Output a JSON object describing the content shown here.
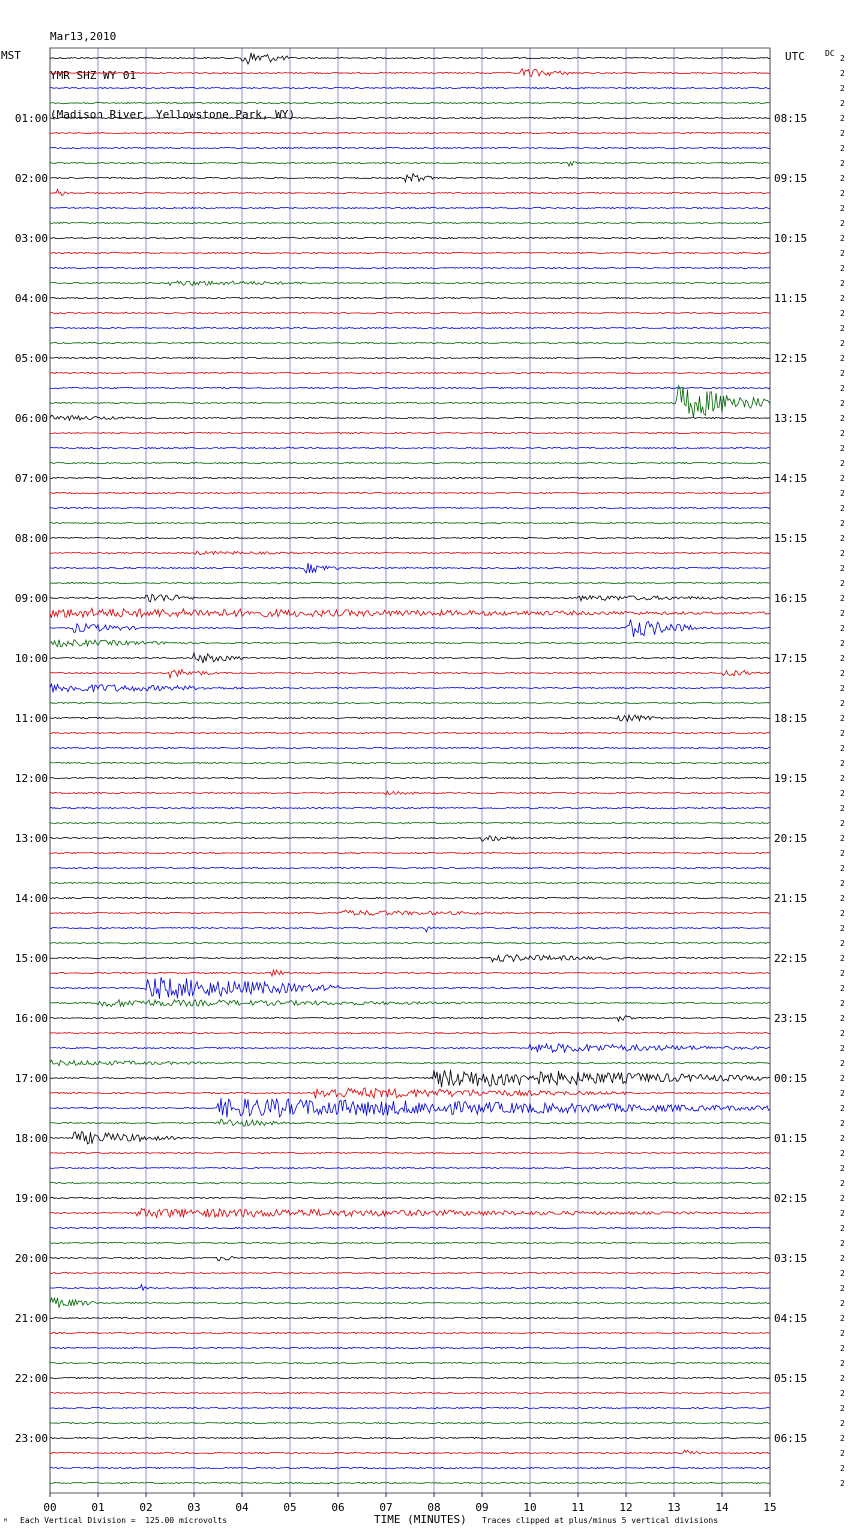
{
  "header": {
    "date": "Mar13,2010",
    "station": "YMR SHZ WY 01",
    "location": "(Madison River, Yellowstone Park, WY)"
  },
  "left_zone": "MST",
  "right_zone": "UTC",
  "dc_label": "DC",
  "footer": {
    "scale": "Each Vertical Division =  125.00 microvolts",
    "xlabel": "TIME (MINUTES)",
    "clip_note": "Traces clipped at plus/minus 5 vertical divisions"
  },
  "colors": {
    "trace_cycle": [
      "#000000",
      "#dd0000",
      "#0000dd",
      "#006600"
    ],
    "grid": "#7777cc"
  },
  "chart_data": {
    "type": "line",
    "title": "YMR SHZ WY 01",
    "xlabel": "TIME (MINUTES)",
    "xlim": [
      0,
      15
    ],
    "x_ticks": [
      "00",
      "01",
      "02",
      "03",
      "04",
      "05",
      "06",
      "07",
      "08",
      "09",
      "10",
      "11",
      "12",
      "13",
      "14",
      "15"
    ],
    "trace_count": 96,
    "minutes_per_trace": 15,
    "left_hour_labels": [
      "01:00",
      "02:00",
      "03:00",
      "04:00",
      "05:00",
      "06:00",
      "07:00",
      "08:00",
      "09:00",
      "10:00",
      "11:00",
      "12:00",
      "13:00",
      "14:00",
      "15:00",
      "16:00",
      "17:00",
      "18:00",
      "19:00",
      "20:00",
      "21:00",
      "22:00",
      "23:00"
    ],
    "right_hour_labels": [
      "08:15",
      "09:15",
      "10:15",
      "11:15",
      "12:15",
      "13:15",
      "14:15",
      "15:15",
      "16:15",
      "17:15",
      "18:15",
      "19:15",
      "20:15",
      "21:15",
      "22:15",
      "23:15",
      "00:15",
      "01:15",
      "02:15",
      "03:15",
      "04:15",
      "05:15",
      "06:15"
    ],
    "right_values": [
      2,
      2,
      2,
      2,
      2,
      2,
      2,
      2,
      2,
      2,
      2,
      2,
      2,
      2,
      2,
      2,
      2,
      2,
      2,
      2,
      2,
      2,
      2,
      2,
      2,
      2,
      2,
      2,
      2,
      2,
      2,
      2,
      2,
      2,
      2,
      2,
      2,
      2,
      2,
      2,
      2,
      2,
      2,
      2,
      2,
      2,
      2,
      2,
      2,
      2,
      2,
      2,
      2,
      2,
      2,
      2,
      2,
      2,
      2,
      2,
      2,
      2,
      2,
      2,
      2,
      2,
      2,
      2,
      2,
      2,
      2,
      2,
      2,
      2,
      2,
      2,
      2,
      2,
      2,
      2,
      2,
      2,
      2,
      2,
      2,
      2,
      2,
      2,
      2,
      2,
      2,
      2,
      2,
      2,
      2,
      2
    ],
    "events": [
      {
        "trace": 0,
        "start_min": 4.0,
        "end_min": 5.0,
        "amplitude": 8
      },
      {
        "trace": 1,
        "start_min": 9.8,
        "end_min": 11.0,
        "amplitude": 5
      },
      {
        "trace": 7,
        "start_min": 10.8,
        "end_min": 11.0,
        "amplitude": 4
      },
      {
        "trace": 8,
        "start_min": 7.4,
        "end_min": 8.0,
        "amplitude": 6
      },
      {
        "trace": 9,
        "start_min": 0.1,
        "end_min": 0.4,
        "amplitude": 5
      },
      {
        "trace": 15,
        "start_min": 2.5,
        "end_min": 6.0,
        "amplitude": 3
      },
      {
        "trace": 23,
        "start_min": 13.0,
        "end_min": 15.0,
        "amplitude": 18
      },
      {
        "trace": 24,
        "start_min": 0.0,
        "end_min": 2.0,
        "amplitude": 3
      },
      {
        "trace": 33,
        "start_min": 3.0,
        "end_min": 6.0,
        "amplitude": 2
      },
      {
        "trace": 34,
        "start_min": 5.3,
        "end_min": 6.0,
        "amplitude": 6
      },
      {
        "trace": 36,
        "start_min": 2.0,
        "end_min": 3.0,
        "amplitude": 6
      },
      {
        "trace": 36,
        "start_min": 11.0,
        "end_min": 15.0,
        "amplitude": 3
      },
      {
        "trace": 37,
        "start_min": 0.0,
        "end_min": 15.0,
        "amplitude": 5
      },
      {
        "trace": 38,
        "start_min": 0.5,
        "end_min": 2.0,
        "amplitude": 5
      },
      {
        "trace": 38,
        "start_min": 12.0,
        "end_min": 13.5,
        "amplitude": 10
      },
      {
        "trace": 39,
        "start_min": 0.0,
        "end_min": 3.0,
        "amplitude": 4
      },
      {
        "trace": 40,
        "start_min": 3.0,
        "end_min": 4.0,
        "amplitude": 6
      },
      {
        "trace": 41,
        "start_min": 2.5,
        "end_min": 3.5,
        "amplitude": 5
      },
      {
        "trace": 41,
        "start_min": 14.0,
        "end_min": 15.0,
        "amplitude": 4
      },
      {
        "trace": 42,
        "start_min": 0.0,
        "end_min": 4.0,
        "amplitude": 5
      },
      {
        "trace": 44,
        "start_min": 11.8,
        "end_min": 12.8,
        "amplitude": 5
      },
      {
        "trace": 49,
        "start_min": 7.0,
        "end_min": 8.0,
        "amplitude": 2
      },
      {
        "trace": 52,
        "start_min": 9.0,
        "end_min": 9.8,
        "amplitude": 4
      },
      {
        "trace": 57,
        "start_min": 6.0,
        "end_min": 10.0,
        "amplitude": 3
      },
      {
        "trace": 58,
        "start_min": 7.8,
        "end_min": 8.0,
        "amplitude": 5
      },
      {
        "trace": 60,
        "start_min": 9.2,
        "end_min": 12.0,
        "amplitude": 4
      },
      {
        "trace": 61,
        "start_min": 4.6,
        "end_min": 5.0,
        "amplitude": 4
      },
      {
        "trace": 62,
        "start_min": 2.0,
        "end_min": 6.0,
        "amplitude": 12
      },
      {
        "trace": 63,
        "start_min": 1.0,
        "end_min": 9.0,
        "amplitude": 4
      },
      {
        "trace": 64,
        "start_min": 11.8,
        "end_min": 12.2,
        "amplitude": 4
      },
      {
        "trace": 66,
        "start_min": 10.0,
        "end_min": 15.0,
        "amplitude": 5
      },
      {
        "trace": 67,
        "start_min": 0.0,
        "end_min": 4.0,
        "amplitude": 3
      },
      {
        "trace": 68,
        "start_min": 8.0,
        "end_min": 15.0,
        "amplitude": 10
      },
      {
        "trace": 69,
        "start_min": 5.5,
        "end_min": 12.0,
        "amplitude": 6
      },
      {
        "trace": 70,
        "start_min": 3.5,
        "end_min": 15.0,
        "amplitude": 10
      },
      {
        "trace": 71,
        "start_min": 3.5,
        "end_min": 5.0,
        "amplitude": 5
      },
      {
        "trace": 72,
        "start_min": 0.5,
        "end_min": 2.6,
        "amplitude": 7
      },
      {
        "trace": 77,
        "start_min": 1.8,
        "end_min": 13.5,
        "amplitude": 5
      },
      {
        "trace": 80,
        "start_min": 3.5,
        "end_min": 4.2,
        "amplitude": 3
      },
      {
        "trace": 82,
        "start_min": 1.9,
        "end_min": 2.1,
        "amplitude": 4
      },
      {
        "trace": 83,
        "start_min": 0.0,
        "end_min": 1.0,
        "amplitude": 6
      },
      {
        "trace": 93,
        "start_min": 13.2,
        "end_min": 13.7,
        "amplitude": 3
      }
    ]
  }
}
